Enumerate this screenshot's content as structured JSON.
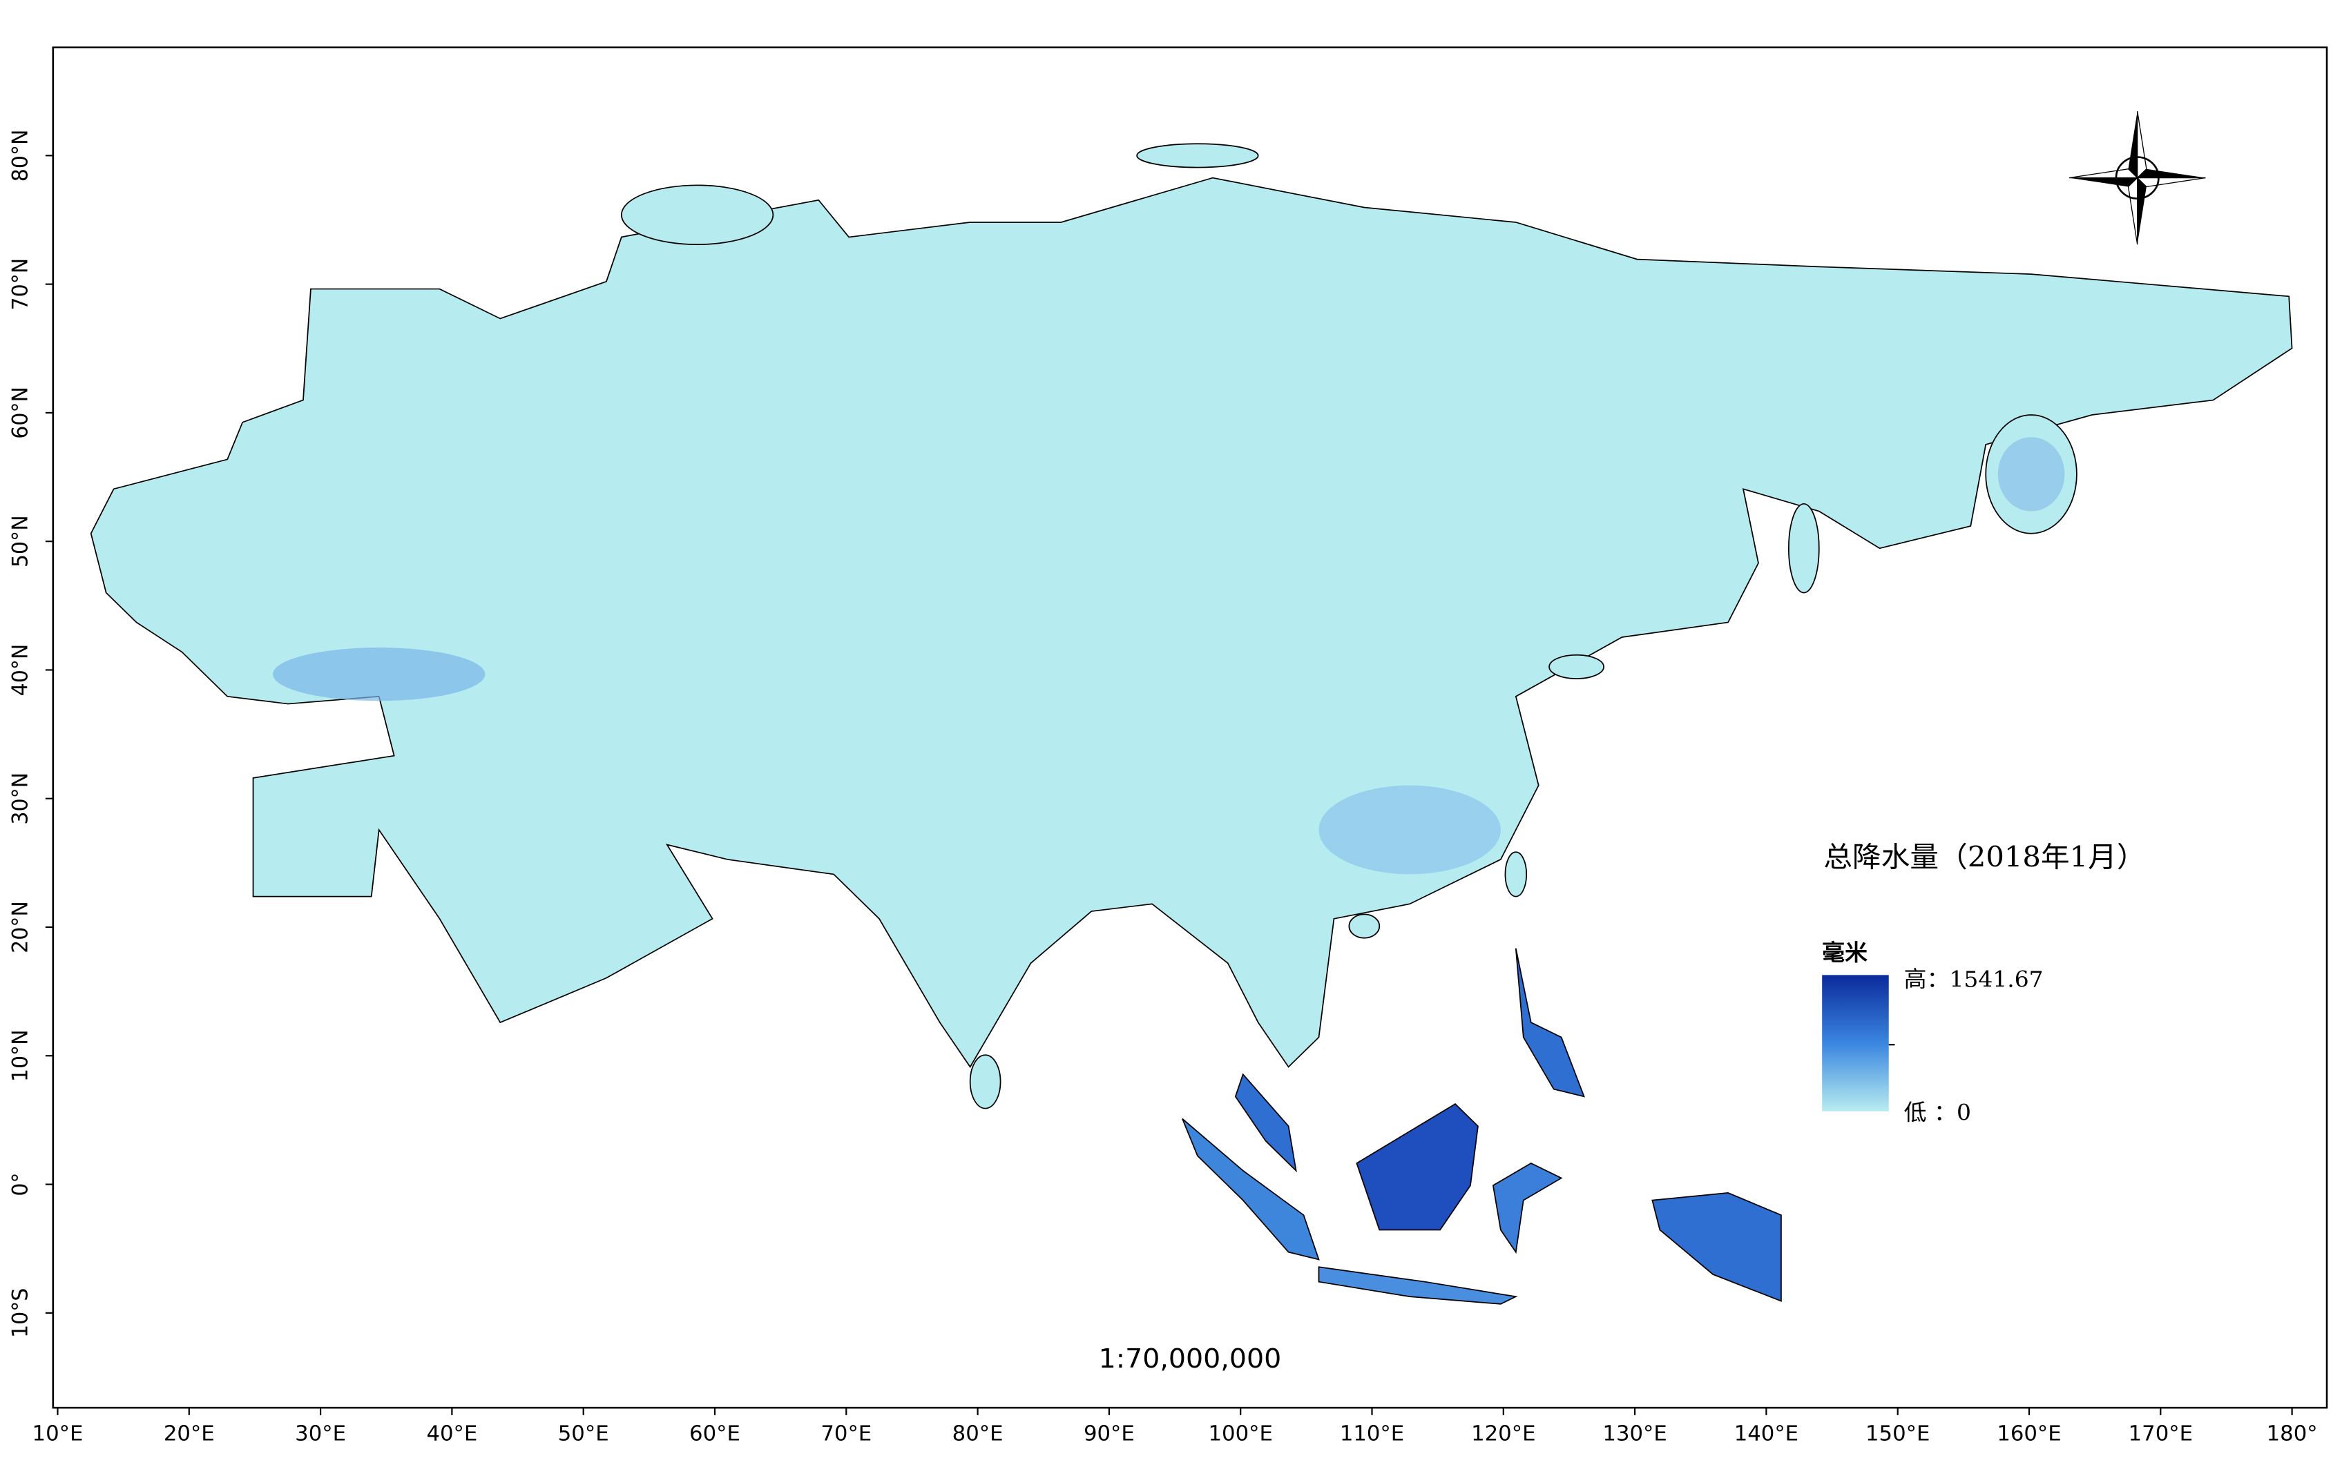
{
  "map": {
    "title": "总降水量（2018年1月）",
    "legend": {
      "unit": "毫米",
      "high_label": "高：1541.67",
      "low_label": "低 ：0",
      "high_color": "#0b2a9c",
      "low_color": "#b8ecf0"
    },
    "scale": "1:70,000,000",
    "land_color": "#b6ecef",
    "xlim": [
      9.65,
      182.65
    ],
    "ylim": [
      -17.37,
      88.41
    ],
    "xticks": [
      {
        "value": 10,
        "label": "10°E"
      },
      {
        "value": 20,
        "label": "20°E"
      },
      {
        "value": 30,
        "label": "30°E"
      },
      {
        "value": 40,
        "label": "40°E"
      },
      {
        "value": 50,
        "label": "50°E"
      },
      {
        "value": 60,
        "label": "60°E"
      },
      {
        "value": 70,
        "label": "70°E"
      },
      {
        "value": 80,
        "label": "80°E"
      },
      {
        "value": 90,
        "label": "90°E"
      },
      {
        "value": 100,
        "label": "100°E"
      },
      {
        "value": 110,
        "label": "110°E"
      },
      {
        "value": 120,
        "label": "120°E"
      },
      {
        "value": 130,
        "label": "130°E"
      },
      {
        "value": 140,
        "label": "140°E"
      },
      {
        "value": 150,
        "label": "150°E"
      },
      {
        "value": 160,
        "label": "160°E"
      },
      {
        "value": 170,
        "label": "170°E"
      },
      {
        "value": 180,
        "label": "180°"
      }
    ],
    "yticks": [
      {
        "value": -10,
        "label": "10°S"
      },
      {
        "value": 0,
        "label": "0°"
      },
      {
        "value": 10,
        "label": "10°N"
      },
      {
        "value": 20,
        "label": "20°N"
      },
      {
        "value": 30,
        "label": "30°N"
      },
      {
        "value": 40,
        "label": "40°N"
      },
      {
        "value": 50,
        "label": "50°N"
      },
      {
        "value": 60,
        "label": "60°N"
      },
      {
        "value": 70,
        "label": "70°N"
      },
      {
        "value": 80,
        "label": "80°N"
      }
    ]
  }
}
